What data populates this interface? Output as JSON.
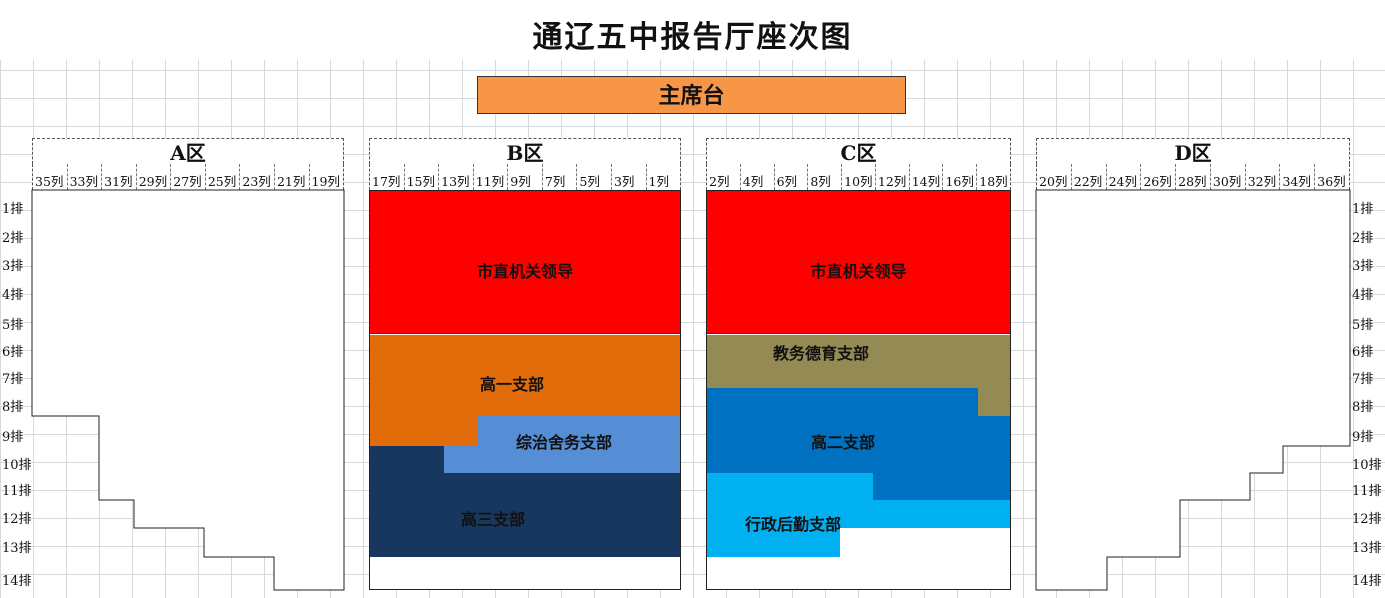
{
  "title": "通辽五中报告厅座次图",
  "podium": "主席台",
  "zones": {
    "A": {
      "label": "A区",
      "columns": [
        "35列",
        "33列",
        "31列",
        "29列",
        "27列",
        "25列",
        "23列",
        "21列",
        "19列"
      ]
    },
    "B": {
      "label": "B区",
      "columns": [
        "17列",
        "15列",
        "13列",
        "11列",
        "9列",
        "7列",
        "5列",
        "3列",
        "1列"
      ]
    },
    "C": {
      "label": "C区",
      "columns": [
        "2列",
        "4列",
        "6列",
        "8列",
        "10列",
        "12列",
        "14列",
        "16列",
        "18列"
      ]
    },
    "D": {
      "label": "D区",
      "columns": [
        "20列",
        "22列",
        "24列",
        "26列",
        "28列",
        "30列",
        "32列",
        "34列",
        "36列"
      ]
    }
  },
  "rows": [
    "1排",
    "2排",
    "3排",
    "4排",
    "5排",
    "6排",
    "7排",
    "8排",
    "9排",
    "10排",
    "11排",
    "12排",
    "13排",
    "14排"
  ],
  "groups": {
    "b_leaders": "市直机关领导",
    "b_grade1": "高一支部",
    "b_general": "综治舍务支部",
    "b_grade3": "高三支部",
    "c_leaders": "市直机关领导",
    "c_teaching": "教务德育支部",
    "c_grade2": "高二支部",
    "c_logistics": "行政后勤支部"
  },
  "colors": {
    "leaders": "#ff0000",
    "grade1": "#e36c0a",
    "general": "#558ed5",
    "grade3": "#17375e",
    "teaching": "#948a54",
    "grade2": "#0070c0",
    "logistics": "#00b0f0",
    "podium": "#f79646"
  }
}
